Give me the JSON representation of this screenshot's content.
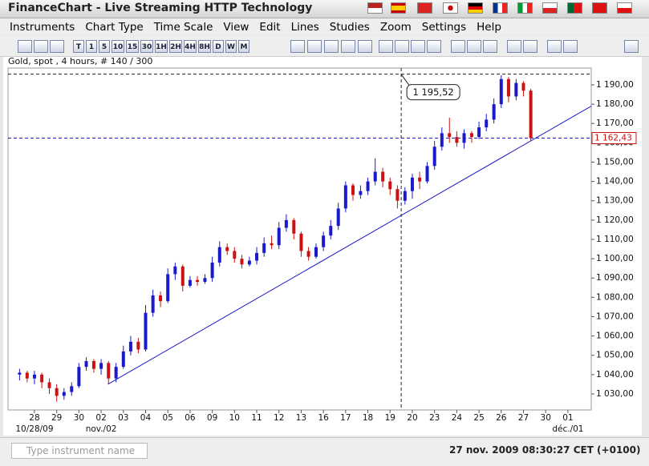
{
  "window": {
    "title": "FinanceChart - Live Streaming HTTP Technology"
  },
  "menu": [
    "Instruments",
    "Chart Type",
    "Time Scale",
    "View",
    "Edit",
    "Lines",
    "Studies",
    "Zoom",
    "Settings",
    "Help"
  ],
  "toolbar": [
    "T",
    "1",
    "5",
    "10",
    "15",
    "30",
    "1H",
    "2H",
    "4H",
    "8H",
    "D",
    "W",
    "M"
  ],
  "chart_data": {
    "type": "candlestick",
    "title": "Gold, spot , 4 hours, # 140 / 300",
    "up_color": "#1a1acc",
    "down_color": "#cc1111",
    "x": [
      -0.67,
      -0.33,
      0,
      0.33,
      0.67,
      1,
      1.33,
      1.67,
      2,
      2.33,
      2.67,
      3,
      3.33,
      3.67,
      4,
      4.33,
      4.67,
      5,
      5.33,
      5.67,
      6,
      6.33,
      6.67,
      7,
      7.33,
      7.67,
      8,
      8.33,
      8.67,
      9,
      9.33,
      9.67,
      10,
      10.33,
      10.67,
      11,
      11.33,
      11.67,
      12,
      12.33,
      12.67,
      13,
      13.33,
      13.67,
      14,
      14.33,
      14.67,
      15,
      15.33,
      15.67,
      16,
      16.33,
      16.67,
      17,
      17.33,
      17.67,
      18,
      18.33,
      18.67,
      19,
      19.33,
      19.67,
      20,
      20.33,
      20.67,
      21,
      21.33,
      21.67,
      22,
      22.33
    ],
    "open": [
      1040,
      1041,
      1038,
      1040,
      1036,
      1033,
      1029,
      1031,
      1034,
      1044,
      1047,
      1043,
      1046,
      1038,
      1044,
      1052,
      1057,
      1053,
      1072,
      1081,
      1078,
      1092,
      1096,
      1086,
      1089,
      1088,
      1090,
      1098,
      1106,
      1104,
      1100,
      1097,
      1099,
      1103,
      1108,
      1107,
      1116,
      1120,
      1113,
      1104,
      1101,
      1106,
      1112,
      1117,
      1126,
      1138,
      1133,
      1135,
      1140,
      1145,
      1140,
      1136,
      1130,
      1135,
      1142,
      1140,
      1148,
      1158,
      1165,
      1163,
      1160,
      1165,
      1163,
      1168,
      1172,
      1180,
      1193,
      1184,
      1191,
      1187
    ],
    "high": [
      1043,
      1042,
      1042,
      1041,
      1038,
      1035,
      1033,
      1036,
      1046,
      1049,
      1048,
      1048,
      1047,
      1046,
      1055,
      1060,
      1059,
      1076,
      1084,
      1083,
      1095,
      1098,
      1097,
      1091,
      1091,
      1092,
      1101,
      1109,
      1108,
      1106,
      1102,
      1101,
      1106,
      1111,
      1112,
      1119,
      1123,
      1121,
      1114,
      1106,
      1108,
      1114,
      1120,
      1129,
      1140,
      1139,
      1138,
      1142,
      1152,
      1147,
      1142,
      1138,
      1137,
      1144,
      1145,
      1150,
      1161,
      1168,
      1173,
      1166,
      1167,
      1166,
      1171,
      1175,
      1183,
      1195,
      1194,
      1193,
      1192,
      1188
    ],
    "low": [
      1037,
      1036,
      1035,
      1033,
      1030,
      1026,
      1027,
      1029,
      1033,
      1042,
      1041,
      1040,
      1035,
      1036,
      1043,
      1050,
      1051,
      1052,
      1070,
      1075,
      1077,
      1089,
      1083,
      1085,
      1086,
      1087,
      1088,
      1096,
      1102,
      1098,
      1095,
      1096,
      1097,
      1101,
      1105,
      1105,
      1114,
      1110,
      1101,
      1099,
      1100,
      1104,
      1110,
      1115,
      1124,
      1130,
      1131,
      1133,
      1138,
      1137,
      1133,
      1126,
      1128,
      1131,
      1136,
      1139,
      1146,
      1156,
      1160,
      1158,
      1157,
      1160,
      1162,
      1166,
      1170,
      1178,
      1181,
      1182,
      1184,
      1161
    ],
    "close": [
      1041,
      1038,
      1040,
      1036,
      1033,
      1029,
      1031,
      1034,
      1044,
      1047,
      1043,
      1046,
      1038,
      1044,
      1052,
      1057,
      1053,
      1072,
      1081,
      1078,
      1092,
      1096,
      1086,
      1089,
      1088,
      1090,
      1098,
      1106,
      1104,
      1100,
      1097,
      1099,
      1103,
      1108,
      1107,
      1116,
      1120,
      1113,
      1104,
      1101,
      1106,
      1112,
      1117,
      1126,
      1138,
      1133,
      1135,
      1140,
      1145,
      1140,
      1136,
      1130,
      1135,
      1142,
      1140,
      1148,
      1158,
      1165,
      1163,
      1160,
      1165,
      1163,
      1168,
      1172,
      1180,
      1193,
      1184,
      1191,
      1187,
      1162.43
    ],
    "xlim": [
      -1.19,
      25.05
    ],
    "xticks": [
      {
        "value": 0,
        "label": "28"
      },
      {
        "value": 1,
        "label": "29"
      },
      {
        "value": 2,
        "label": "30"
      },
      {
        "value": 3,
        "label": "02"
      },
      {
        "value": 4,
        "label": "03"
      },
      {
        "value": 5,
        "label": "04"
      },
      {
        "value": 6,
        "label": "05"
      },
      {
        "value": 7,
        "label": "06"
      },
      {
        "value": 8,
        "label": "09"
      },
      {
        "value": 9,
        "label": "10"
      },
      {
        "value": 10,
        "label": "11"
      },
      {
        "value": 11,
        "label": "12"
      },
      {
        "value": 12,
        "label": "13"
      },
      {
        "value": 13,
        "label": "16"
      },
      {
        "value": 14,
        "label": "17"
      },
      {
        "value": 15,
        "label": "18"
      },
      {
        "value": 16,
        "label": "19"
      },
      {
        "value": 17,
        "label": "20"
      },
      {
        "value": 18,
        "label": "23"
      },
      {
        "value": 19,
        "label": "24"
      },
      {
        "value": 20,
        "label": "25"
      },
      {
        "value": 21,
        "label": "26"
      },
      {
        "value": 22,
        "label": "27"
      },
      {
        "value": 23,
        "label": "30"
      },
      {
        "value": 24,
        "label": "01"
      }
    ],
    "x_sublabels": [
      {
        "value": 0,
        "label": "10/28/09"
      },
      {
        "value": 3,
        "label": "nov./02"
      },
      {
        "value": 24,
        "label": "déc./01"
      }
    ],
    "ylim": [
      1021.7,
      1198.7
    ],
    "yticks": [
      {
        "value": 1030,
        "label": "1 030,00"
      },
      {
        "value": 1040,
        "label": "1 040,00"
      },
      {
        "value": 1050,
        "label": "1 050,00"
      },
      {
        "value": 1060,
        "label": "1 060,00"
      },
      {
        "value": 1070,
        "label": "1 070,00"
      },
      {
        "value": 1080,
        "label": "1 080,00"
      },
      {
        "value": 1090,
        "label": "1 090,00"
      },
      {
        "value": 1100,
        "label": "1 100,00"
      },
      {
        "value": 1110,
        "label": "1 110,00"
      },
      {
        "value": 1120,
        "label": "1 120,00"
      },
      {
        "value": 1130,
        "label": "1 130,00"
      },
      {
        "value": 1140,
        "label": "1 140,00"
      },
      {
        "value": 1150,
        "label": "1 150,00"
      },
      {
        "value": 1160,
        "label": "1 160,00"
      },
      {
        "value": 1170,
        "label": "1 170,00"
      },
      {
        "value": 1180,
        "label": "1 180,00"
      },
      {
        "value": 1190,
        "label": "1 190,00"
      }
    ],
    "trendline": {
      "x": [
        3.3,
        25.05
      ],
      "y": [
        1035,
        1179
      ],
      "color": "#1a1acc"
    },
    "crosshair": {
      "x": 16.5,
      "y": 1195.52,
      "label": "1 195,52"
    },
    "last_price": {
      "value": 1162.43,
      "label": "1 162,43",
      "color": "#1a1acc"
    }
  },
  "status": {
    "input_placeholder": "Type instrument name",
    "datetime": "27 nov. 2009 08:30:27 CET (+0100)"
  }
}
